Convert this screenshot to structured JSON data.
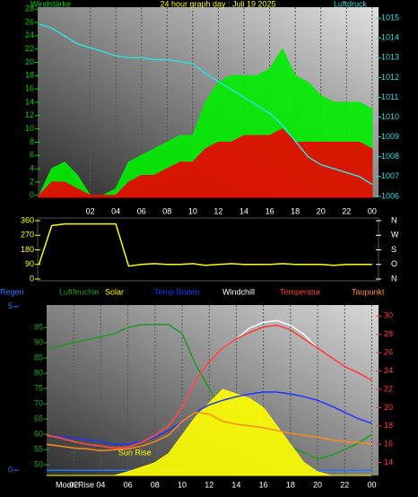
{
  "chart_data": [
    {
      "type": "line",
      "title": "24 hour graph day : Juli 19 2025",
      "ylabel": "Windstärke",
      "y2label": "Luftdruck",
      "x": [
        -2,
        -1,
        0,
        1,
        2,
        3,
        4,
        5,
        6,
        7,
        8,
        9,
        10,
        11,
        12,
        13,
        14,
        15,
        16,
        17,
        18,
        19,
        20,
        21,
        22,
        23,
        24
      ],
      "xlim": [
        -2.1,
        24.5
      ],
      "xticks": [
        {
          "value": 2,
          "label": "02"
        },
        {
          "value": 4,
          "label": "04"
        },
        {
          "value": 6,
          "label": "06"
        },
        {
          "value": 8,
          "label": "08"
        },
        {
          "value": 10,
          "label": "10"
        },
        12,
        14,
        16,
        18,
        20,
        22,
        {
          "value": 24,
          "label": "00"
        }
      ],
      "ylim": [
        -0.3,
        28.3
      ],
      "yticks": [
        0,
        2,
        4,
        6,
        8,
        10,
        12,
        14,
        16,
        18,
        20,
        22,
        24,
        26,
        28
      ],
      "y2lim": [
        1005.95,
        1015.55
      ],
      "y2ticks": [
        1006,
        1007,
        1008,
        1009,
        1010,
        1011,
        1012,
        1013,
        1014,
        1015
      ],
      "series": [
        {
          "color": "#00ee00",
          "area": true,
          "values": [
            0,
            4,
            5,
            3,
            0,
            0,
            1,
            5,
            6,
            7,
            8,
            9,
            9,
            14,
            17,
            18,
            18,
            18,
            19,
            22,
            18,
            17,
            15,
            14,
            14,
            14,
            13
          ]
        },
        {
          "color": "#ee0000",
          "area": true,
          "values": [
            0,
            2,
            2,
            1,
            0,
            0,
            0,
            2,
            3,
            3,
            4,
            5,
            5,
            7,
            8,
            8,
            9,
            9,
            9,
            10,
            8,
            8,
            8,
            8,
            8,
            8,
            7
          ]
        },
        {
          "color": "#33dddd",
          "axis": "y2",
          "values": [
            1014.7,
            1014.5,
            1014.1,
            1013.7,
            1013.5,
            1013.3,
            1013.1,
            1013.0,
            1013.0,
            1012.9,
            1012.9,
            1012.8,
            1012.7,
            1012.2,
            1011.8,
            1011.4,
            1011.0,
            1010.6,
            1010.2,
            1009.6,
            1008.8,
            1008.0,
            1007.6,
            1007.4,
            1007.2,
            1007.0,
            1006.6
          ]
        }
      ]
    },
    {
      "type": "line",
      "x": [
        -2,
        -1,
        0,
        1,
        2,
        3,
        4,
        5,
        6,
        7,
        8,
        9,
        10,
        11,
        12,
        13,
        14,
        15,
        16,
        17,
        18,
        19,
        20,
        21,
        22,
        23,
        24
      ],
      "xlim": [
        -2.1,
        24.5
      ],
      "xticks": [
        2,
        4,
        6,
        8,
        10,
        12,
        14,
        16,
        18,
        20,
        22,
        24
      ],
      "ylim": [
        -11,
        376.6
      ],
      "yticks": [
        0,
        90,
        180,
        270,
        360
      ],
      "y2lim": [
        -11,
        376.6
      ],
      "y2ticks": [
        {
          "value": 360,
          "label": "N"
        },
        {
          "value": 270,
          "label": "W"
        },
        {
          "value": 180,
          "label": "S"
        },
        {
          "value": 90,
          "label": "O"
        },
        {
          "value": 0,
          "label": "N"
        }
      ],
      "series": [
        {
          "color": "#ffff00",
          "values": [
            90,
            330,
            340,
            340,
            340,
            340,
            340,
            80,
            90,
            95,
            90,
            90,
            95,
            85,
            90,
            95,
            90,
            90,
            90,
            95,
            90,
            90,
            90,
            85,
            90,
            90,
            90
          ]
        }
      ]
    },
    {
      "type": "line",
      "x": [
        0,
        1,
        2,
        3,
        4,
        5,
        6,
        7,
        8,
        9,
        10,
        11,
        12,
        13,
        14,
        15,
        16,
        17,
        18,
        19,
        20,
        21,
        22,
        23,
        24
      ],
      "xlim": [
        0,
        24.5
      ],
      "xticks": [
        {
          "value": 2,
          "label": "02"
        },
        {
          "value": 4,
          "label": "04"
        },
        {
          "value": 6,
          "label": "06"
        },
        {
          "value": 8,
          "label": "08"
        },
        {
          "value": 10,
          "label": "10"
        },
        12,
        14,
        16,
        18,
        20,
        22,
        {
          "value": 24,
          "label": "00"
        }
      ],
      "ylim": [
        46.5,
        102.4
      ],
      "yticks": [
        50,
        55,
        60,
        65,
        70,
        75,
        80,
        85,
        90,
        95
      ],
      "y2lim": [
        12.6,
        31.2
      ],
      "y2ticks": [
        14,
        16,
        18,
        20,
        22,
        24,
        26,
        28,
        30
      ],
      "y3lim": [
        -0.16,
        5.05
      ],
      "y3ticks": [
        0,
        5
      ],
      "annotations": [
        "Sun Rise",
        "Moon Rise"
      ],
      "series": [
        {
          "name": "Regen",
          "color": "#2277ff",
          "axis": "y3",
          "values": [
            0,
            0,
            0,
            0,
            0,
            0,
            0,
            0,
            0,
            0,
            0,
            0,
            0,
            0,
            0,
            0,
            0,
            0,
            0,
            0,
            0,
            0,
            0,
            0,
            0
          ]
        },
        {
          "name": "Luftfeuchte",
          "color": "#229922",
          "values": [
            88,
            89,
            90,
            91,
            92,
            93,
            95,
            96,
            96,
            96,
            93,
            83,
            75,
            68,
            66,
            64,
            60,
            58,
            56,
            54,
            52,
            53,
            55,
            57,
            60
          ]
        },
        {
          "name": "Solar",
          "color": "#ffff00",
          "axis": "y2",
          "area": true,
          "values": [
            12.6,
            12.6,
            12.6,
            12.6,
            12.6,
            12.6,
            13,
            13.5,
            14,
            15,
            17,
            19,
            20.5,
            22,
            21.5,
            21,
            20,
            18,
            16,
            14,
            13,
            12.6,
            12.6,
            12.6,
            12.6
          ]
        },
        {
          "name": "Temp Boden",
          "color": "#2233ff",
          "axis": "y2",
          "values": [
            17,
            16.8,
            16.7,
            16.5,
            16.3,
            16,
            16,
            16.3,
            16.8,
            17.5,
            18.5,
            19.5,
            20.3,
            20.8,
            21.2,
            21.5,
            21.7,
            21.7,
            21.5,
            21.2,
            20.8,
            20.2,
            19.5,
            18.8,
            18.3
          ]
        },
        {
          "name": "Windchill",
          "color": "#ffffff",
          "axis": "y2",
          "values": [
            17,
            16.7,
            16.3,
            16,
            15.8,
            15.6,
            15.7,
            16.2,
            17,
            18,
            20,
            23,
            25,
            26.5,
            27.5,
            28.7,
            29.3,
            29.5,
            29,
            28,
            26.5,
            null,
            null,
            null,
            null
          ]
        },
        {
          "name": "Temperatur",
          "color": "#ff3b3b",
          "axis": "y2",
          "values": [
            17,
            16.7,
            16.3,
            16,
            15.8,
            15.6,
            15.7,
            16.2,
            17,
            18,
            20,
            23,
            25,
            26.5,
            27.5,
            28.2,
            28.8,
            29,
            28.5,
            27.5,
            26.5,
            25.5,
            24.5,
            23.8,
            23
          ]
        },
        {
          "name": "Taupunkt",
          "color": "#ff8c1a",
          "axis": "y2",
          "values": [
            16,
            15.8,
            15.6,
            15.5,
            15.3,
            15.4,
            15.5,
            15.8,
            16.3,
            17,
            18.5,
            19.5,
            19.3,
            18.5,
            18.2,
            18,
            17.8,
            17.5,
            17.2,
            17,
            16.8,
            16.5,
            16.3,
            16.2,
            16
          ]
        }
      ]
    }
  ]
}
